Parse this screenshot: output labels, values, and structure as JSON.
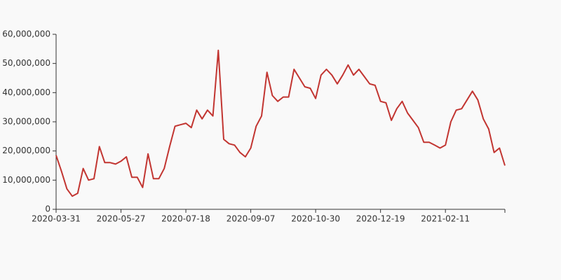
{
  "chart_data": {
    "type": "line",
    "categories": [
      "2020-03-31",
      null,
      null,
      null,
      null,
      null,
      null,
      null,
      null,
      null,
      null,
      null,
      "2020-05-27",
      null,
      null,
      null,
      null,
      null,
      null,
      null,
      null,
      null,
      null,
      null,
      "2020-07-18",
      null,
      null,
      null,
      null,
      null,
      null,
      null,
      null,
      null,
      null,
      null,
      "2020-09-07",
      null,
      null,
      null,
      null,
      null,
      null,
      null,
      null,
      null,
      null,
      null,
      "2020-10-30",
      null,
      null,
      null,
      null,
      null,
      null,
      null,
      null,
      null,
      null,
      null,
      "2020-12-19",
      null,
      null,
      null,
      null,
      null,
      null,
      null,
      null,
      null,
      null,
      null,
      "2021-02-11",
      null,
      null,
      null,
      null,
      null,
      null,
      null,
      null,
      null,
      null,
      null
    ],
    "series": [
      {
        "color": "#c23531",
        "values": [
          18500000,
          13000000,
          7000000,
          4500000,
          5500000,
          14000000,
          10000000,
          10500000,
          21500000,
          16000000,
          16000000,
          15500000,
          16500000,
          18000000,
          11000000,
          11000000,
          7500000,
          19000000,
          10500000,
          10500000,
          14000000,
          21500000,
          28500000,
          29000000,
          29500000,
          28000000,
          34000000,
          31000000,
          34000000,
          32000000,
          54500000,
          24000000,
          22500000,
          22000000,
          19500000,
          18000000,
          21000000,
          28500000,
          32000000,
          47000000,
          39000000,
          37000000,
          38500000,
          38500000,
          48000000,
          45000000,
          42000000,
          41500000,
          38000000,
          46000000,
          48000000,
          46000000,
          43000000,
          46000000,
          49500000,
          46000000,
          48000000,
          45500000,
          43000000,
          42500000,
          37000000,
          36500000,
          30500000,
          34500000,
          37000000,
          33000000,
          30500000,
          28000000,
          23000000,
          23000000,
          22000000,
          21000000,
          22000000,
          30000000,
          34000000,
          34500000,
          37500000,
          40500000,
          37500000,
          31000000,
          27500000,
          19500000,
          21000000,
          15000000
        ]
      }
    ],
    "ylim": [
      0,
      60000000
    ],
    "yticks": [
      0,
      {
        "value": 10000000,
        "label": "10,000,000"
      },
      {
        "value": 20000000,
        "label": "20,000,000"
      },
      {
        "value": 30000000,
        "label": "30,000,000"
      },
      {
        "value": 40000000,
        "label": "40,000,000"
      },
      {
        "value": 50000000,
        "label": "50,000,000"
      },
      {
        "value": 60000000,
        "label": "60,000,000"
      }
    ],
    "grid": false
  }
}
